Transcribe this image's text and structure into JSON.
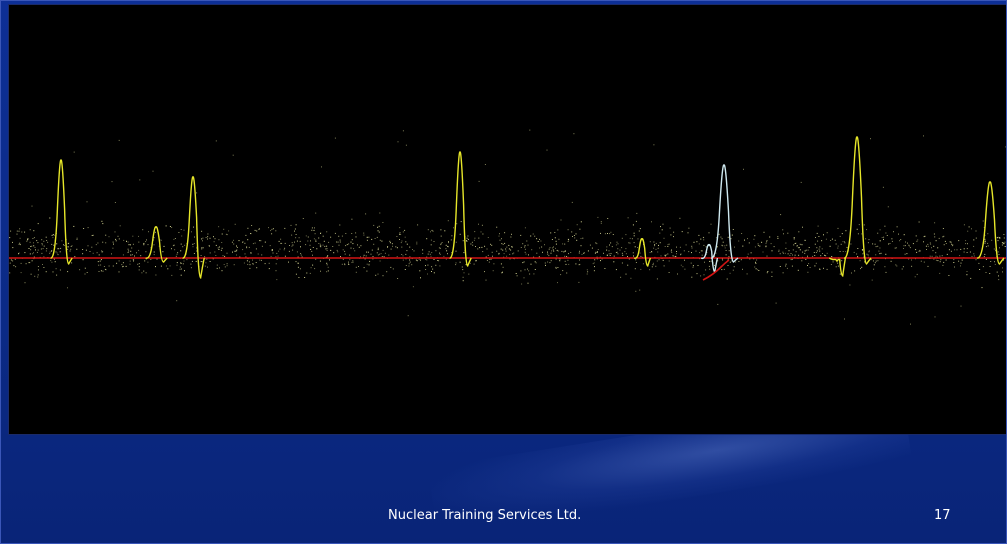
{
  "footer": {
    "organization": "Nuclear Training Services Ltd.",
    "page_number": "17"
  },
  "trace": {
    "background_color": "#000000",
    "baseline_color": "#d21414",
    "pulse_color": "#e6e629",
    "highlighted_pulse_color": "#cfe9f0",
    "noise_color": "#e8e8a0"
  },
  "slide": {
    "background_color": "#0b2a8a"
  }
}
